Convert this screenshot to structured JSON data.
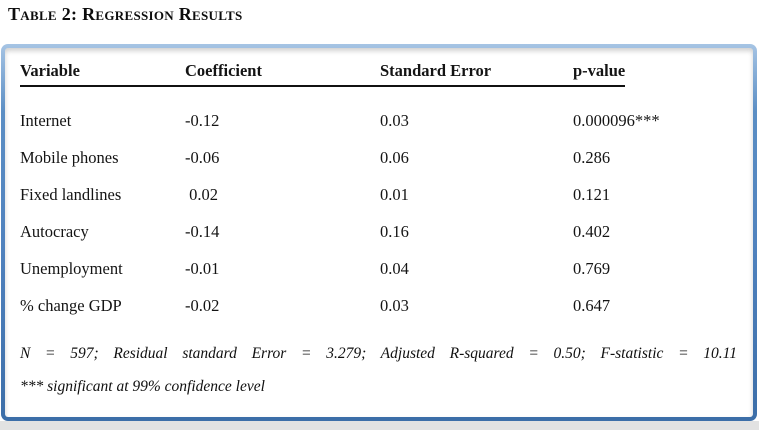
{
  "title": "Table 2: Regression Results",
  "table": {
    "columns": [
      "Variable",
      "Coefficient",
      "Standard Error",
      "p-value"
    ],
    "rows": [
      {
        "variable": "Internet",
        "coefficient": "-0.12",
        "std_error": "0.03",
        "p_value": "0.000096***"
      },
      {
        "variable": "Mobile phones",
        "coefficient": "-0.06",
        "std_error": "0.06",
        "p_value": "0.286"
      },
      {
        "variable": "Fixed landlines",
        "coefficient": " 0.02",
        "std_error": "0.01",
        "p_value": "0.121"
      },
      {
        "variable": "Autocracy",
        "coefficient": "-0.14",
        "std_error": "0.16",
        "p_value": "0.402"
      },
      {
        "variable": "Unemployment",
        "coefficient": "-0.01",
        "std_error": "0.04",
        "p_value": "0.769"
      },
      {
        "variable": "% change GDP",
        "coefficient": "-0.02",
        "std_error": "0.03",
        "p_value": "0.647"
      }
    ],
    "notes": {
      "stats_line": "N = 597; Residual standard Error = 3.279; Adjusted R-squared = 0.50; F-statistic = 10.11",
      "significance_line": "*** significant at 99% confidence level"
    }
  },
  "stats": {
    "n": 597,
    "residual_standard_error": 3.279,
    "adjusted_r_squared": 0.5,
    "f_statistic": 10.11,
    "significance_threshold": "99% confidence level"
  },
  "colors": {
    "border_blue": "#4f81bd",
    "border_blue_light": "#a6c4e4",
    "border_blue_dark": "#3c6ea8",
    "page_bottom_gray": "#e2e2e2",
    "text": "#141414"
  }
}
